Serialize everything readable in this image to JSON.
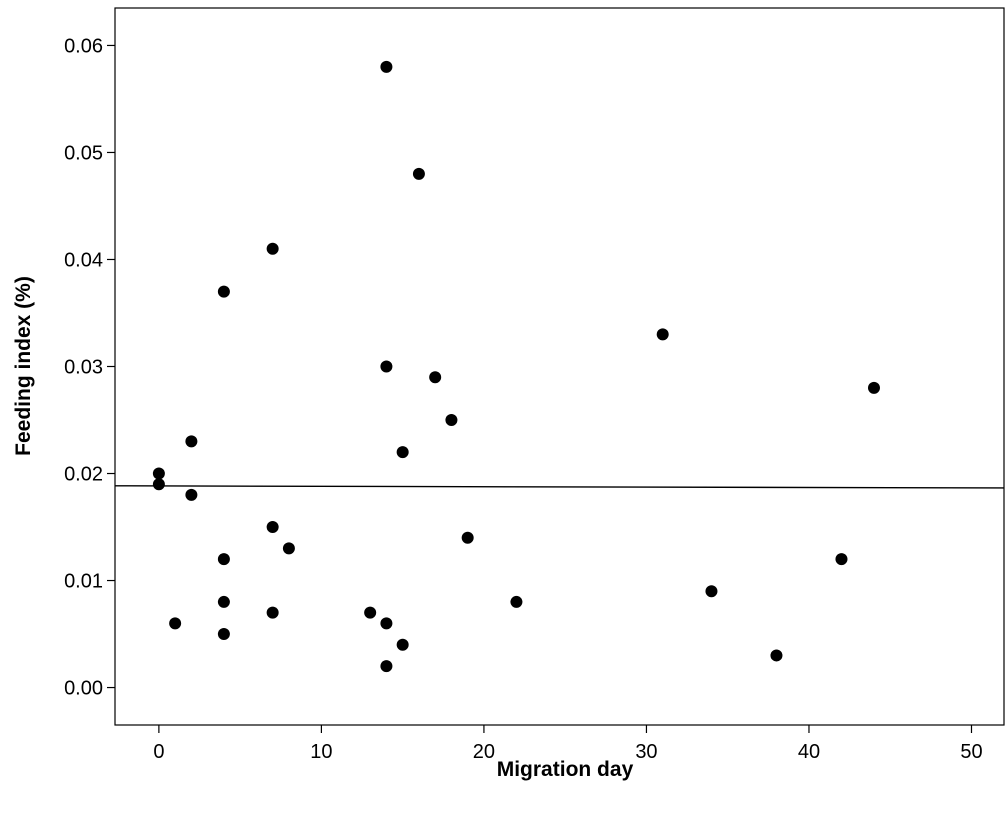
{
  "chart_data": {
    "type": "scatter",
    "xlabel": "Migration day",
    "ylabel": "Feeding index (%)",
    "xlim": [
      -2.7,
      52
    ],
    "ylim": [
      -0.0035,
      0.0635
    ],
    "xticks": [
      0,
      10,
      20,
      30,
      40,
      50
    ],
    "xtick_labels": [
      "0",
      "10",
      "20",
      "30",
      "40",
      "50"
    ],
    "yticks": [
      0,
      0.01,
      0.02,
      0.03,
      0.04,
      0.05,
      0.06
    ],
    "ytick_labels": [
      "0.00",
      "0.01",
      "0.02",
      "0.03",
      "0.04",
      "0.05",
      "0.06"
    ],
    "grid": false,
    "series": [
      {
        "x": [
          14,
          16,
          7,
          4,
          31,
          14,
          17,
          44,
          18,
          15,
          2,
          0,
          0,
          2,
          7,
          19,
          8,
          4,
          42,
          34,
          22,
          4,
          1,
          7,
          13,
          14,
          4,
          15,
          38,
          14
        ],
        "y": [
          0.058,
          0.048,
          0.041,
          0.037,
          0.033,
          0.03,
          0.029,
          0.028,
          0.025,
          0.022,
          0.023,
          0.02,
          0.019,
          0.018,
          0.015,
          0.014,
          0.013,
          0.012,
          0.012,
          0.009,
          0.008,
          0.008,
          0.006,
          0.007,
          0.007,
          0.006,
          0.005,
          0.004,
          0.003,
          0.002
        ]
      }
    ],
    "fit_line": {
      "type": "linear",
      "x": [
        -2.7,
        52
      ],
      "y": [
        0.01885,
        0.01865
      ]
    },
    "colors": {
      "points": "#000000",
      "axes": "#000000",
      "background": "#ffffff"
    }
  }
}
